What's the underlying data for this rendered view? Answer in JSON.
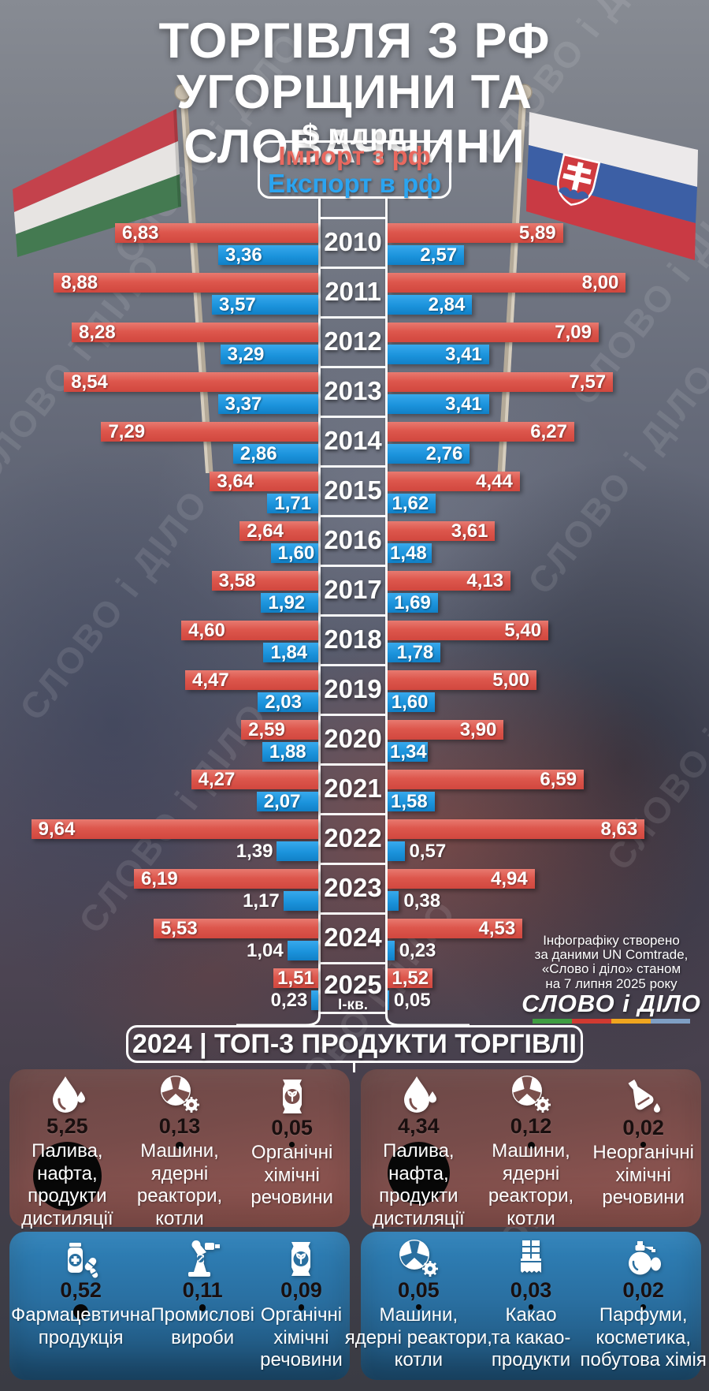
{
  "title": {
    "line1": "ТОРГІВЛЯ З РФ",
    "line2": "УГОРЩИНИ ТА СЛОВАЧЧИНИ"
  },
  "subtitle": "$ млрд",
  "legend": {
    "import_label": "Імпорт з рф",
    "export_label": "Експорт в рф"
  },
  "colors": {
    "import": "#dd574d",
    "export": "#1b93dc",
    "import_text": "#e8695f",
    "export_text": "#2ba4f0"
  },
  "watermark": {
    "text": "СЛОВО і ДІЛО"
  },
  "flags": {
    "left": "hungary-flag",
    "right": "slovakia-flag"
  },
  "chart_data": {
    "type": "bar",
    "layout": "butterfly-horizontal",
    "unit": "$ млрд",
    "categories": [
      "2010",
      "2011",
      "2012",
      "2013",
      "2014",
      "2015",
      "2016",
      "2017",
      "2018",
      "2019",
      "2020",
      "2021",
      "2022",
      "2023",
      "2024",
      "2025"
    ],
    "last_category_note": "І-кв.",
    "series": [
      {
        "name": "Угорщина — Імпорт з рф",
        "country": "hungary",
        "kind": "import",
        "color": "#dd574d",
        "values": [
          6.83,
          8.88,
          8.28,
          8.54,
          7.29,
          3.64,
          2.64,
          3.58,
          4.6,
          4.47,
          2.59,
          4.27,
          9.64,
          6.19,
          5.53,
          1.51
        ],
        "labels": [
          "6,83",
          "8,88",
          "8,28",
          "8,54",
          "7,29",
          "3,64",
          "2,64",
          "3,58",
          "4,60",
          "4,47",
          "2,59",
          "4,27",
          "9,64",
          "6,19",
          "5,53",
          "1,51"
        ]
      },
      {
        "name": "Угорщина — Експорт в рф",
        "country": "hungary",
        "kind": "export",
        "color": "#1b93dc",
        "values": [
          3.36,
          3.57,
          3.29,
          3.37,
          2.86,
          1.71,
          1.6,
          1.92,
          1.84,
          2.03,
          1.88,
          2.07,
          1.39,
          1.17,
          1.04,
          0.23
        ],
        "labels": [
          "3,36",
          "3,57",
          "3,29",
          "3,37",
          "2,86",
          "1,71",
          "1,60",
          "1,92",
          "1,84",
          "2,03",
          "1,88",
          "2,07",
          "1,39",
          "1,17",
          "1,04",
          "0,23"
        ]
      },
      {
        "name": "Словаччина — Імпорт з рф",
        "country": "slovakia",
        "kind": "import",
        "color": "#dd574d",
        "values": [
          5.89,
          8.0,
          7.09,
          7.57,
          6.27,
          4.44,
          3.61,
          4.13,
          5.4,
          5.0,
          3.9,
          6.59,
          8.63,
          4.94,
          4.53,
          1.52
        ],
        "labels": [
          "5,89",
          "8,00",
          "7,09",
          "7,57",
          "6,27",
          "4,44",
          "3,61",
          "4,13",
          "5,40",
          "5,00",
          "3,90",
          "6,59",
          "8,63",
          "4,94",
          "4,53",
          "1,52"
        ]
      },
      {
        "name": "Словаччина — Експорт в рф",
        "country": "slovakia",
        "kind": "export",
        "color": "#1b93dc",
        "values": [
          2.57,
          2.84,
          3.41,
          3.41,
          2.76,
          1.62,
          1.48,
          1.69,
          1.78,
          1.6,
          1.34,
          1.58,
          0.57,
          0.38,
          0.23,
          0.05
        ],
        "labels": [
          "2,57",
          "2,84",
          "3,41",
          "3,41",
          "2,76",
          "1,62",
          "1,48",
          "1,69",
          "1,78",
          "1,60",
          "1,34",
          "1,58",
          "0,57",
          "0,38",
          "0,23",
          "0,05"
        ]
      }
    ]
  },
  "source_note": {
    "lines": [
      "Інфографіку створено",
      "за даними UN Comtrade,",
      "«Слово і діло» станом",
      "на 7 липня 2025 року"
    ]
  },
  "logo": {
    "text": "СЛОВО і ДІЛО",
    "stripe_colors": [
      "#3f9e42",
      "#d03a31",
      "#efa51f",
      "#7f9fc4"
    ]
  },
  "bottom": {
    "header": "2024 | ТОП-3 ПРОДУКТИ ТОРГІВЛІ",
    "hungary": {
      "imports": [
        {
          "value": "5,25",
          "num": 5.25,
          "label": "Палива,\nнафта,\nпродукти\nдистиляції",
          "icon": "oil-drop"
        },
        {
          "value": "0,13",
          "num": 0.13,
          "label": "Машини,\nядерні\nреактори,\nкотли",
          "icon": "nuclear-machinery"
        },
        {
          "value": "0,05",
          "num": 0.05,
          "label": "Органічні\nхімічні\nречовини",
          "icon": "organic-chem"
        }
      ],
      "exports": [
        {
          "value": "0,52",
          "num": 0.52,
          "label": "Фармацевтична\nпродукція",
          "icon": "pharma"
        },
        {
          "value": "0,11",
          "num": 0.11,
          "label": "Промислові\nвироби",
          "icon": "industrial"
        },
        {
          "value": "0,09",
          "num": 0.09,
          "label": "Органічні\nхімічні\nречовини",
          "icon": "organic-chem"
        }
      ]
    },
    "slovakia": {
      "imports": [
        {
          "value": "4,34",
          "num": 4.34,
          "label": "Палива,\nнафта,\nпродукти\nдистиляції",
          "icon": "oil-drop"
        },
        {
          "value": "0,12",
          "num": 0.12,
          "label": "Машини,\nядерні\nреактори,\nкотли",
          "icon": "nuclear-machinery"
        },
        {
          "value": "0,02",
          "num": 0.02,
          "label": "Неорганічні\nхімічні\nречовини",
          "icon": "inorganic-chem"
        }
      ],
      "exports": [
        {
          "value": "0,05",
          "num": 0.05,
          "label": "Машини,\nядерні реактори,\nкотли",
          "icon": "nuclear-machinery"
        },
        {
          "value": "0,03",
          "num": 0.03,
          "label": "Какао\nта какао-\nпродукти",
          "icon": "cocoa"
        },
        {
          "value": "0,02",
          "num": 0.02,
          "label": "Парфуми,\nкосметика,\nпобутова хімія",
          "icon": "perfume"
        }
      ]
    }
  }
}
